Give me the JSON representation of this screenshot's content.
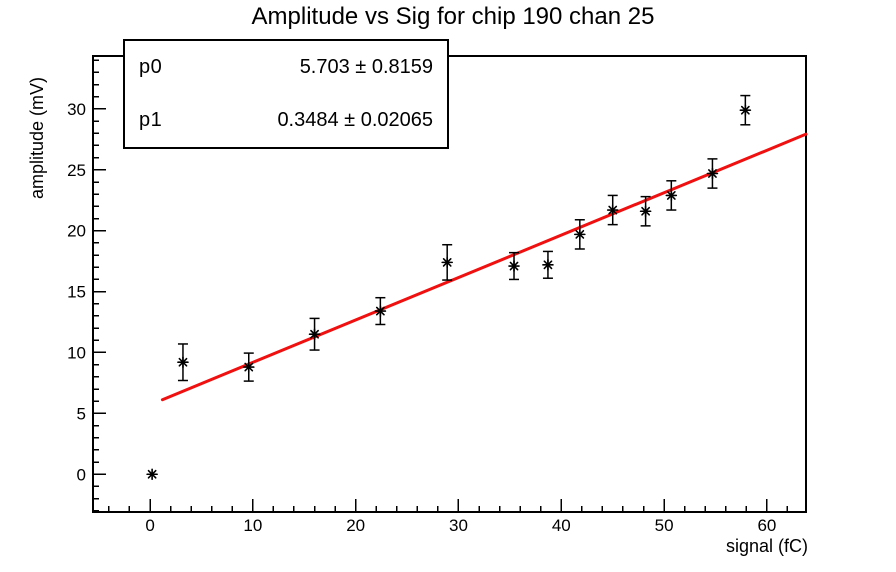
{
  "title": "Amplitude vs Sig for chip 190 chan 25",
  "stats_box": {
    "rows": [
      {
        "param": "p0",
        "value": "5.703 ± 0.8159"
      },
      {
        "param": "p1",
        "value": "0.3484 ± 0.02065"
      }
    ]
  },
  "chart_data": {
    "type": "scatter",
    "title": "Amplitude vs Sig for chip 190 chan 25",
    "xlabel": "signal (fC)",
    "ylabel": "amplitude (mV)",
    "xlim": [
      -5.55,
      63.8
    ],
    "ylim": [
      -3.1,
      34.35
    ],
    "x_major_ticks": [
      0,
      10,
      20,
      30,
      40,
      50,
      60
    ],
    "x_minor_step": 2,
    "y_major_ticks": [
      0,
      5,
      10,
      15,
      20,
      25,
      30
    ],
    "y_minor_step": 1,
    "grid": false,
    "legend": "none",
    "marker": "asterisk",
    "point_color": "#000000",
    "fit_color": "#f11010",
    "points": [
      {
        "x": 0.2,
        "y": 0.0,
        "err": 0.0
      },
      {
        "x": 3.2,
        "y": 9.2,
        "err": 1.5
      },
      {
        "x": 9.6,
        "y": 8.8,
        "err": 1.15
      },
      {
        "x": 16.0,
        "y": 11.5,
        "err": 1.3
      },
      {
        "x": 22.4,
        "y": 13.4,
        "err": 1.1
      },
      {
        "x": 28.9,
        "y": 17.4,
        "err": 1.45
      },
      {
        "x": 35.4,
        "y": 17.1,
        "err": 1.1
      },
      {
        "x": 38.7,
        "y": 17.2,
        "err": 1.1
      },
      {
        "x": 41.8,
        "y": 19.7,
        "err": 1.2
      },
      {
        "x": 45.0,
        "y": 21.7,
        "err": 1.2
      },
      {
        "x": 48.2,
        "y": 21.6,
        "err": 1.2
      },
      {
        "x": 50.7,
        "y": 22.9,
        "err": 1.2
      },
      {
        "x": 54.7,
        "y": 24.7,
        "err": 1.2
      },
      {
        "x": 57.9,
        "y": 29.9,
        "err": 1.2
      }
    ],
    "fit": {
      "p0": 5.703,
      "p1": 0.3484,
      "x_start": 1.2,
      "x_end": 63.8
    }
  }
}
